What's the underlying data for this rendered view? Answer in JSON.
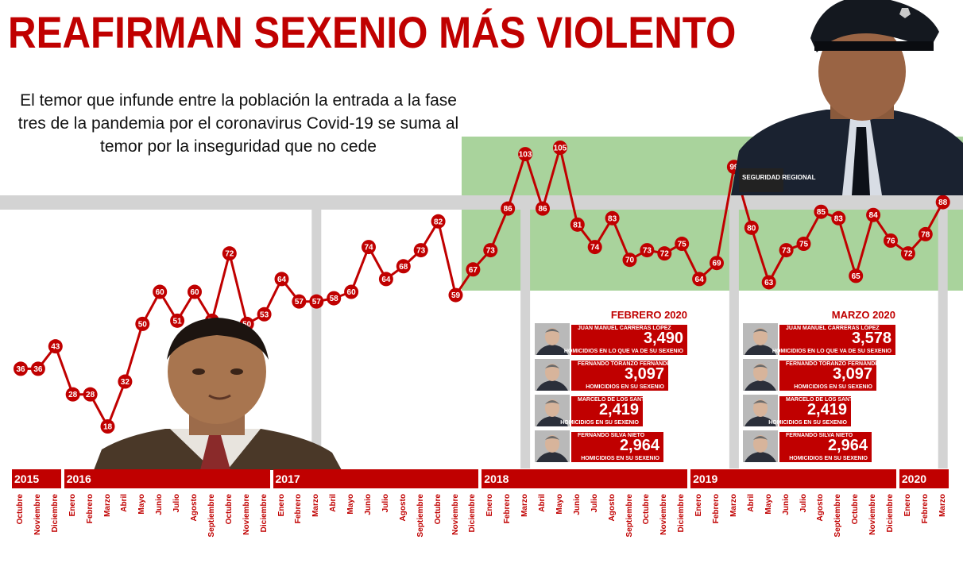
{
  "headline": "REAFIRMAN SEXENIO MÁS VIOLENTO",
  "subtitle": "El temor que infunde entre la población la entrada a la fase tres de la pandemia por el coronavirus Covid-19 se suma al temor por la inseguridad que no cede",
  "colors": {
    "accent": "#c00000",
    "band": "#a9d39c",
    "grey": "#d3d3d3"
  },
  "chart_data": {
    "type": "line",
    "title": "",
    "xlabel": "",
    "ylabel": "",
    "grid": false,
    "x": [
      "Octubre",
      "Noviembre",
      "Diciembre",
      "Enero",
      "Febrero",
      "Marzo",
      "Abril",
      "Mayo",
      "Junio",
      "Julio",
      "Agosto",
      "Septiembre",
      "Octubre",
      "Noviembre",
      "Diciembre",
      "Enero",
      "Febrero",
      "Marzo",
      "Abril",
      "Mayo",
      "Junio",
      "Julio",
      "Agosto",
      "Septiembre",
      "Octubre",
      "Noviembre",
      "Diciembre",
      "Enero",
      "Febrero",
      "Marzo",
      "Abril",
      "Mayo",
      "Junio",
      "Julio",
      "Agosto",
      "Septiembre",
      "Octubre",
      "Noviembre",
      "Diciembre",
      "Enero",
      "Febrero",
      "Marzo",
      "Abril",
      "Mayo",
      "Junio",
      "Julio",
      "Agosto",
      "Septiembre",
      "Octubre",
      "Noviembre",
      "Diciembre",
      "Enero",
      "Febrero",
      "Marzo"
    ],
    "values": [
      36,
      36,
      43,
      28,
      28,
      18,
      32,
      50,
      60,
      51,
      60,
      51,
      72,
      50,
      53,
      64,
      57,
      57,
      58,
      60,
      74,
      64,
      68,
      73,
      82,
      59,
      67,
      73,
      86,
      103,
      86,
      105,
      81,
      74,
      83,
      70,
      73,
      72,
      75,
      64,
      69,
      99,
      80,
      63,
      73,
      75,
      85,
      83,
      65,
      84,
      76,
      72,
      78,
      88
    ],
    "years": [
      {
        "label": "2015",
        "start": 0,
        "end": 2
      },
      {
        "label": "2016",
        "start": 3,
        "end": 14
      },
      {
        "label": "2017",
        "start": 15,
        "end": 26
      },
      {
        "label": "2018",
        "start": 27,
        "end": 38
      },
      {
        "label": "2019",
        "start": 39,
        "end": 50
      },
      {
        "label": "2020",
        "start": 51,
        "end": 53
      }
    ]
  },
  "panels": [
    {
      "title": "FEBRERO 2020",
      "rows": [
        {
          "name": "JUAN MANUEL CARRERAS LÓPEZ",
          "value": "3,490",
          "caption": "HOMICIDIOS EN LO QUE VA DE SU SEXENIO"
        },
        {
          "name": "FERNANDO TORANZO FERNÁNDEZ",
          "value": "3,097",
          "caption": "HOMICIDIOS EN SU SEXENIO"
        },
        {
          "name": "MARCELO DE LOS SANTOS",
          "value": "2,419",
          "caption": "HOMICIDIOS EN SU SEXENIO"
        },
        {
          "name": "FERNANDO SILVA NIETO",
          "value": "2,964",
          "caption": "HOMICIDIOS EN SU SEXENIO"
        }
      ]
    },
    {
      "title": "MARZO 2020",
      "rows": [
        {
          "name": "JUAN MANUEL CARRERAS LÓPEZ",
          "value": "3,578",
          "caption": "HOMICIDIOS EN LO QUE VA DE SU SEXENIO"
        },
        {
          "name": "FERNANDO TORANZO FERNÁNDEZ",
          "value": "3,097",
          "caption": "HOMICIDIOS EN SU SEXENIO"
        },
        {
          "name": "MARCELO DE LOS SANTOS",
          "value": "2,419",
          "caption": "HOMICIDIOS EN SU SEXENIO"
        },
        {
          "name": "FERNANDO SILVA NIETO",
          "value": "2,964",
          "caption": "HOMICIDIOS EN SU SEXENIO"
        }
      ]
    }
  ],
  "police_badge_text": "SEGURIDAD REGIONAL",
  "icons": {
    "left_photo": "man-portrait-photo",
    "right_photo": "police-officer-photo",
    "governor": "governor-portrait-icon"
  }
}
